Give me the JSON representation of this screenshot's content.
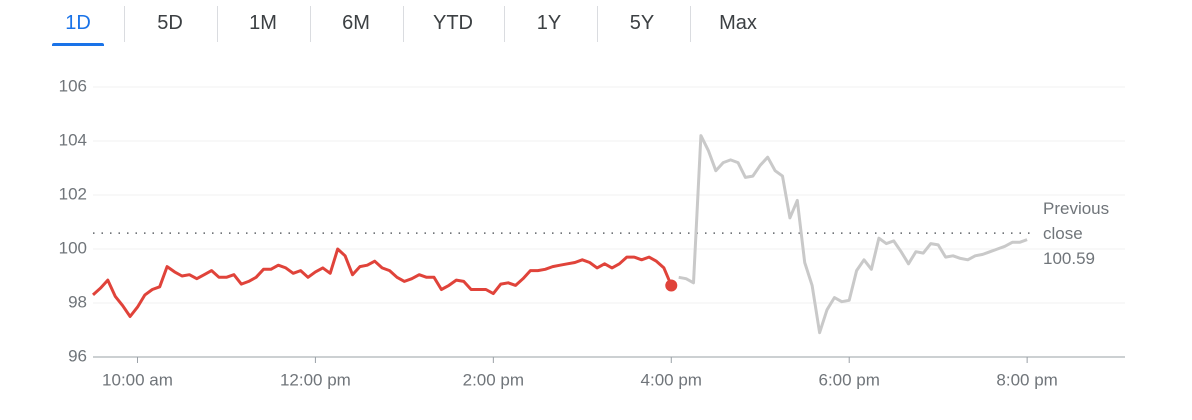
{
  "tabs": {
    "items": [
      "1D",
      "5D",
      "1M",
      "6M",
      "YTD",
      "1Y",
      "5Y",
      "Max"
    ],
    "active": 0
  },
  "chart_data": {
    "type": "line",
    "xlim": [
      570,
      1266
    ],
    "xticks": [
      {
        "value": 600,
        "label": "10:00 am"
      },
      {
        "value": 720,
        "label": "12:00 pm"
      },
      {
        "value": 840,
        "label": "2:00 pm"
      },
      {
        "value": 960,
        "label": "4:00 pm"
      },
      {
        "value": 1080,
        "label": "6:00 pm"
      },
      {
        "value": 1200,
        "label": "8:00 pm"
      }
    ],
    "ylim": [
      96,
      106
    ],
    "yticks": [
      96,
      98,
      100,
      102,
      104,
      106
    ],
    "grid": true,
    "reference_line": {
      "label": "Previous close",
      "value": 100.59
    },
    "series": [
      {
        "color": "#e0433a",
        "marker_last": true,
        "x": [
          570,
          575,
          580,
          585,
          590,
          595,
          600,
          605,
          610,
          615,
          620,
          625,
          630,
          635,
          640,
          645,
          650,
          655,
          660,
          665,
          670,
          675,
          680,
          685,
          690,
          695,
          700,
          705,
          710,
          715,
          720,
          725,
          730,
          735,
          740,
          745,
          750,
          755,
          760,
          765,
          770,
          775,
          780,
          785,
          790,
          795,
          800,
          805,
          810,
          815,
          820,
          825,
          830,
          835,
          840,
          845,
          850,
          855,
          860,
          865,
          870,
          875,
          880,
          885,
          890,
          895,
          900,
          905,
          910,
          915,
          920,
          925,
          930,
          935,
          940,
          945,
          950,
          955,
          960
        ],
        "values": [
          98.3,
          98.55,
          98.85,
          98.25,
          97.9,
          97.5,
          97.85,
          98.3,
          98.5,
          98.6,
          99.35,
          99.15,
          99.0,
          99.05,
          98.9,
          99.05,
          99.2,
          98.95,
          98.95,
          99.05,
          98.7,
          98.8,
          98.95,
          99.25,
          99.25,
          99.4,
          99.3,
          99.1,
          99.2,
          98.95,
          99.15,
          99.3,
          99.1,
          100.0,
          99.75,
          99.05,
          99.35,
          99.4,
          99.55,
          99.3,
          99.2,
          98.95,
          98.8,
          98.9,
          99.05,
          98.95,
          98.95,
          98.5,
          98.65,
          98.85,
          98.8,
          98.5,
          98.5,
          98.5,
          98.35,
          98.7,
          98.75,
          98.65,
          98.9,
          99.2,
          99.2,
          99.25,
          99.35,
          99.4,
          99.45,
          99.5,
          99.6,
          99.5,
          99.3,
          99.45,
          99.3,
          99.45,
          99.7,
          99.7,
          99.6,
          99.7,
          99.55,
          99.3,
          98.65
        ]
      },
      {
        "color": "#c9c9c9",
        "x": [
          965,
          970,
          975,
          980,
          985,
          990,
          995,
          1000,
          1005,
          1010,
          1015,
          1020,
          1025,
          1030,
          1035,
          1040,
          1045,
          1050,
          1055,
          1060,
          1065,
          1070,
          1075,
          1080,
          1085,
          1090,
          1095,
          1100,
          1105,
          1110,
          1115,
          1120,
          1125,
          1130,
          1135,
          1140,
          1145,
          1150,
          1155,
          1160,
          1165,
          1170,
          1175,
          1180,
          1185,
          1190,
          1195,
          1200
        ],
        "values": [
          98.95,
          98.9,
          98.75,
          104.2,
          103.65,
          102.9,
          103.2,
          103.3,
          103.2,
          102.65,
          102.7,
          103.1,
          103.4,
          102.9,
          102.7,
          101.15,
          101.8,
          99.5,
          98.65,
          96.9,
          97.75,
          98.2,
          98.05,
          98.1,
          99.2,
          99.6,
          99.25,
          100.4,
          100.2,
          100.3,
          99.9,
          99.45,
          99.9,
          99.85,
          100.2,
          100.15,
          99.7,
          99.75,
          99.65,
          99.6,
          99.75,
          99.8,
          99.9,
          100.0,
          100.1,
          100.25,
          100.25,
          100.35
        ]
      }
    ]
  }
}
